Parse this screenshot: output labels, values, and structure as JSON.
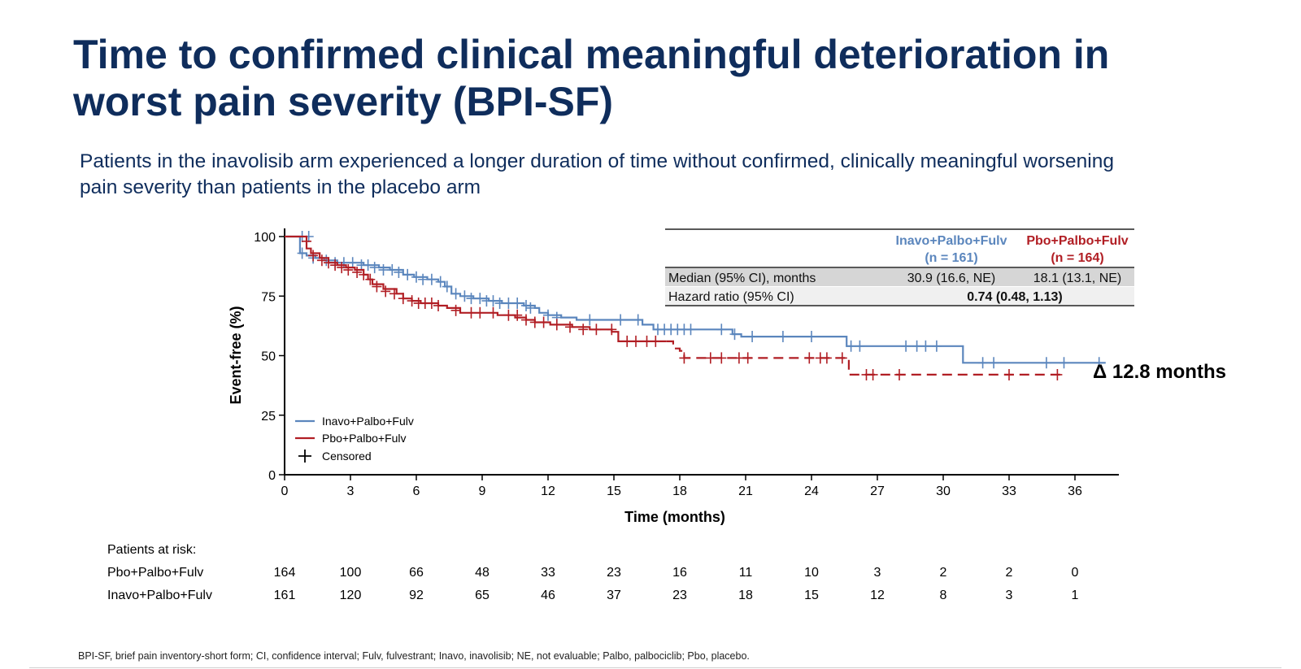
{
  "slide": {
    "title_line1": "Time to confirmed clinical meaningful deterioration in",
    "title_line2": "worst pain severity (BPI-SF)",
    "subtitle_line1": "Patients in the inavolisib arm experienced a longer duration of time without confirmed, clinically meaningful worsening",
    "subtitle_line2": "pain severity than patients in the placebo arm",
    "footnote": "BPI-SF, brief pain inventory-short form; CI, confidence interval; Fulv, fulvestrant; Inavo, inavolisib; NE, not evaluable; Palbo, palbociclib; Pbo, placebo."
  },
  "colors": {
    "title": "#0f2d5c",
    "inavo": "#5b86bd",
    "pbo": "#b11e24",
    "table_shade": "#d6d6d6"
  },
  "chart_data": {
    "type": "line",
    "subtype": "kaplan-meier",
    "xlabel": "Time (months)",
    "ylabel": "Event-free (%)",
    "xlim": [
      0,
      38
    ],
    "ylim": [
      0,
      100
    ],
    "xticks": [
      0,
      3,
      6,
      9,
      12,
      15,
      18,
      21,
      24,
      27,
      30,
      33,
      36
    ],
    "yticks": [
      0,
      25,
      50,
      75,
      100
    ],
    "legend": {
      "position": "bottom-left",
      "entries": [
        "Inavo+Palbo+Fulv",
        "Pbo+Palbo+Fulv",
        "Censored"
      ]
    },
    "annotation": "Δ 12.8 months",
    "series": [
      {
        "name": "Inavo+Palbo+Fulv",
        "key": "inavo",
        "line_style": "solid",
        "steps": [
          [
            0,
            100
          ],
          [
            0.7,
            100
          ],
          [
            0.7,
            93
          ],
          [
            1.0,
            92
          ],
          [
            1.4,
            91
          ],
          [
            1.8,
            90
          ],
          [
            2.4,
            89
          ],
          [
            3.0,
            89
          ],
          [
            3.6,
            88
          ],
          [
            4.3,
            87
          ],
          [
            4.8,
            86
          ],
          [
            5.4,
            84
          ],
          [
            5.9,
            83
          ],
          [
            6.5,
            82
          ],
          [
            7.0,
            81
          ],
          [
            7.3,
            79
          ],
          [
            7.6,
            76
          ],
          [
            8.0,
            75
          ],
          [
            8.6,
            74
          ],
          [
            9.3,
            73
          ],
          [
            9.9,
            72
          ],
          [
            10.4,
            72
          ],
          [
            10.9,
            71
          ],
          [
            11.4,
            70
          ],
          [
            11.6,
            68
          ],
          [
            12.0,
            67
          ],
          [
            12.6,
            66
          ],
          [
            13.3,
            65
          ],
          [
            16.3,
            63
          ],
          [
            16.8,
            61
          ],
          [
            20.4,
            59
          ],
          [
            20.8,
            58
          ],
          [
            25.6,
            54
          ],
          [
            30.9,
            47
          ],
          [
            37.4,
            47
          ]
        ],
        "censored": [
          [
            0.8,
            100
          ],
          [
            1.1,
            100
          ],
          [
            0.8,
            93
          ],
          [
            1.3,
            91
          ],
          [
            1.9,
            90
          ],
          [
            2.3,
            89
          ],
          [
            2.7,
            89
          ],
          [
            3.1,
            89
          ],
          [
            3.5,
            88
          ],
          [
            3.8,
            88
          ],
          [
            4.1,
            87
          ],
          [
            4.5,
            86
          ],
          [
            4.9,
            86
          ],
          [
            5.2,
            85
          ],
          [
            5.6,
            84
          ],
          [
            6.0,
            83
          ],
          [
            6.3,
            82
          ],
          [
            6.7,
            82
          ],
          [
            7.1,
            81
          ],
          [
            7.4,
            79
          ],
          [
            7.8,
            76
          ],
          [
            8.2,
            75
          ],
          [
            8.5,
            74
          ],
          [
            8.9,
            74
          ],
          [
            9.2,
            73
          ],
          [
            9.5,
            73
          ],
          [
            9.8,
            72
          ],
          [
            10.2,
            72
          ],
          [
            10.6,
            72
          ],
          [
            11.0,
            71
          ],
          [
            11.2,
            70
          ],
          [
            12.0,
            67
          ],
          [
            12.4,
            66
          ],
          [
            13.9,
            65
          ],
          [
            15.3,
            65
          ],
          [
            16.1,
            65
          ],
          [
            17.0,
            61
          ],
          [
            17.3,
            61
          ],
          [
            17.6,
            61
          ],
          [
            17.9,
            61
          ],
          [
            18.2,
            61
          ],
          [
            18.5,
            61
          ],
          [
            19.9,
            61
          ],
          [
            20.5,
            59
          ],
          [
            21.3,
            58
          ],
          [
            22.7,
            58
          ],
          [
            24.0,
            58
          ],
          [
            25.8,
            54
          ],
          [
            26.2,
            54
          ],
          [
            28.3,
            54
          ],
          [
            28.8,
            54
          ],
          [
            29.2,
            54
          ],
          [
            29.7,
            54
          ],
          [
            31.8,
            47
          ],
          [
            32.3,
            47
          ],
          [
            34.7,
            47
          ],
          [
            35.5,
            47
          ],
          [
            37.1,
            47
          ]
        ]
      },
      {
        "name": "Pbo+Palbo+Fulv",
        "key": "pbo",
        "line_style": "solid-then-dashed",
        "dash_from_x": 17.4,
        "steps": [
          [
            0,
            100
          ],
          [
            1.0,
            100
          ],
          [
            1.0,
            95
          ],
          [
            1.2,
            93
          ],
          [
            1.6,
            91
          ],
          [
            2.0,
            89
          ],
          [
            2.4,
            88
          ],
          [
            2.8,
            87
          ],
          [
            3.2,
            86
          ],
          [
            3.6,
            84
          ],
          [
            3.8,
            82
          ],
          [
            4.0,
            80
          ],
          [
            4.5,
            78
          ],
          [
            5.1,
            76
          ],
          [
            5.4,
            74
          ],
          [
            5.8,
            73
          ],
          [
            6.2,
            72
          ],
          [
            7.0,
            71
          ],
          [
            7.4,
            70
          ],
          [
            8.0,
            68
          ],
          [
            9.7,
            67
          ],
          [
            10.5,
            66
          ],
          [
            11.0,
            65
          ],
          [
            11.4,
            64
          ],
          [
            12.1,
            63
          ],
          [
            13.1,
            62
          ],
          [
            13.9,
            61
          ],
          [
            14.9,
            60
          ],
          [
            15.2,
            56
          ],
          [
            17.4,
            56
          ],
          [
            17.7,
            53
          ],
          [
            18.0,
            52
          ],
          [
            18.2,
            49
          ],
          [
            25.6,
            49
          ],
          [
            25.7,
            42
          ],
          [
            35.5,
            42
          ]
        ],
        "censored": [
          [
            1.0,
            98
          ],
          [
            1.3,
            92
          ],
          [
            1.7,
            90
          ],
          [
            2.0,
            89
          ],
          [
            2.3,
            88
          ],
          [
            2.6,
            87
          ],
          [
            2.9,
            86
          ],
          [
            3.3,
            85
          ],
          [
            3.6,
            84
          ],
          [
            3.9,
            82
          ],
          [
            4.2,
            79
          ],
          [
            4.6,
            77
          ],
          [
            5.0,
            76
          ],
          [
            5.4,
            74
          ],
          [
            5.8,
            73
          ],
          [
            6.1,
            72
          ],
          [
            6.4,
            72
          ],
          [
            6.7,
            72
          ],
          [
            7.0,
            71
          ],
          [
            7.8,
            69
          ],
          [
            8.5,
            68
          ],
          [
            8.9,
            68
          ],
          [
            9.5,
            68
          ],
          [
            10.2,
            67
          ],
          [
            10.6,
            67
          ],
          [
            11.0,
            65
          ],
          [
            11.4,
            64
          ],
          [
            11.8,
            64
          ],
          [
            12.4,
            63
          ],
          [
            13.0,
            62
          ],
          [
            13.6,
            61
          ],
          [
            14.2,
            61
          ],
          [
            14.9,
            61
          ],
          [
            15.6,
            56
          ],
          [
            16.0,
            56
          ],
          [
            16.5,
            56
          ],
          [
            16.9,
            56
          ],
          [
            18.2,
            49
          ],
          [
            19.4,
            49
          ],
          [
            19.9,
            49
          ],
          [
            20.7,
            49
          ],
          [
            21.1,
            49
          ],
          [
            23.9,
            49
          ],
          [
            24.4,
            49
          ],
          [
            24.7,
            49
          ],
          [
            25.4,
            49
          ],
          [
            26.5,
            42
          ],
          [
            26.8,
            42
          ],
          [
            28.0,
            42
          ],
          [
            33.0,
            42
          ],
          [
            35.2,
            42
          ]
        ]
      }
    ],
    "table": {
      "columns": [
        {
          "line1": "Inavo+Palbo+Fulv",
          "line2": "(n = 161)",
          "color": "#5b86bd"
        },
        {
          "line1": "Pbo+Palbo+Fulv",
          "line2": "(n = 164)",
          "color": "#b11e24"
        }
      ],
      "median_label": "Median (95% CI), months",
      "median_inavo": "30.9 (16.6, NE)",
      "median_pbo": "18.1 (13.1, NE)",
      "hr_label": "Hazard ratio (95% CI)",
      "hr_value": "0.74 (0.48, 1.13)"
    },
    "risk_table": {
      "title": "Patients at risk:",
      "rows": [
        {
          "label": "Pbo+Palbo+Fulv",
          "values": [
            164,
            100,
            66,
            48,
            33,
            23,
            16,
            11,
            10,
            3,
            2,
            2,
            0
          ]
        },
        {
          "label": "Inavo+Palbo+Fulv",
          "values": [
            161,
            120,
            92,
            65,
            46,
            37,
            23,
            18,
            15,
            12,
            8,
            3,
            1
          ]
        }
      ]
    }
  }
}
